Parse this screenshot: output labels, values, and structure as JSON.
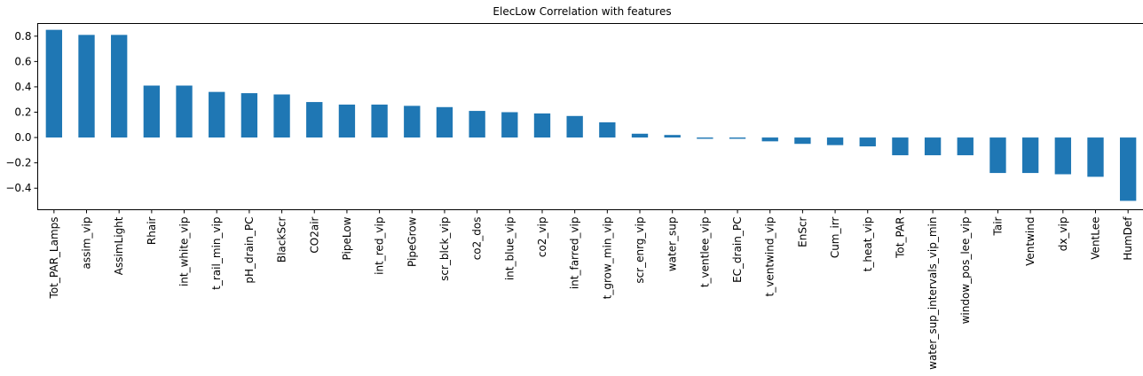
{
  "chart_data": {
    "type": "bar",
    "title": "ElecLow Correlation with features",
    "xlabel": "",
    "ylabel": "",
    "categories": [
      "Tot_PAR_Lamps",
      "assim_vip",
      "AssimLight",
      "Rhair",
      "int_white_vip",
      "t_rail_min_vip",
      "pH_drain_PC",
      "BlackScr",
      "CO2air",
      "PipeLow",
      "int_red_vip",
      "PipeGrow",
      "scr_blck_vip",
      "co2_dos",
      "int_blue_vip",
      "co2_vip",
      "int_farred_vip",
      "t_grow_min_vip",
      "scr_enrg_vip",
      "water_sup",
      "t_ventlee_vip",
      "EC_drain_PC",
      "t_ventwind_vip",
      "EnScr",
      "Cum_irr",
      "t_heat_vip",
      "Tot_PAR",
      "water_sup_intervals_vip_min",
      "window_pos_lee_vip",
      "Tair",
      "Ventwind",
      "dx_vip",
      "VentLee",
      "HumDef"
    ],
    "values": [
      0.85,
      0.81,
      0.81,
      0.41,
      0.41,
      0.36,
      0.35,
      0.34,
      0.28,
      0.26,
      0.26,
      0.25,
      0.24,
      0.21,
      0.2,
      0.19,
      0.17,
      0.12,
      0.03,
      0.02,
      -0.01,
      -0.01,
      -0.03,
      -0.05,
      -0.06,
      -0.07,
      -0.14,
      -0.14,
      -0.14,
      -0.28,
      -0.28,
      -0.29,
      -0.31,
      -0.5
    ],
    "ylim": [
      -0.57,
      0.9
    ],
    "yticks": [
      "0.8",
      "0.6",
      "0.4",
      "0.2",
      "0.0",
      "−0.2",
      "−0.4"
    ],
    "ytick_values": [
      0.8,
      0.6,
      0.4,
      0.2,
      0.0,
      -0.2,
      -0.4
    ],
    "grid": false,
    "legend": "none",
    "bar_color": "#1f77b4"
  }
}
